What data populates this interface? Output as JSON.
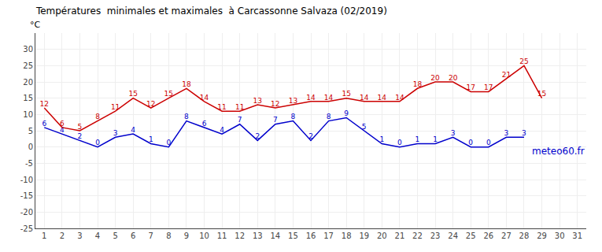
{
  "chart_data": {
    "type": "line",
    "title": "Températures  minimales et maximales  à Carcassonne Salvaza (02/2019)",
    "ylabel": "°C",
    "x": [
      1,
      2,
      3,
      4,
      5,
      6,
      7,
      8,
      9,
      10,
      11,
      12,
      13,
      14,
      15,
      16,
      17,
      18,
      19,
      20,
      21,
      22,
      23,
      24,
      25,
      26,
      27,
      28,
      29,
      30,
      31
    ],
    "series": [
      {
        "color": "#0000cc",
        "values": [
          6,
          4,
          2,
          0,
          3,
          4,
          1,
          0,
          8,
          6,
          4,
          7,
          2,
          7,
          8,
          2,
          8,
          9,
          5,
          1,
          0,
          1,
          1,
          3,
          0,
          0,
          3,
          3,
          null,
          null,
          null
        ]
      },
      {
        "color": "#cc0000",
        "values": [
          12,
          6,
          5,
          8,
          11,
          15,
          12,
          15,
          18,
          14,
          11,
          11,
          13,
          12,
          13,
          14,
          14,
          15,
          14,
          14,
          14,
          18,
          20,
          20,
          17,
          17,
          21,
          25,
          15,
          null,
          null
        ]
      }
    ],
    "annotations": [
      {
        "text": "meteo60.fr",
        "color": "#0000cc"
      }
    ],
    "xlim": [
      0.5,
      31.5
    ],
    "xticks": [
      1,
      2,
      3,
      4,
      5,
      6,
      7,
      8,
      9,
      10,
      11,
      12,
      13,
      14,
      15,
      16,
      17,
      18,
      19,
      20,
      21,
      22,
      23,
      24,
      25,
      26,
      27,
      28,
      29,
      30,
      31
    ],
    "ylim": [
      -25,
      35
    ],
    "yticks": [
      -25,
      -20,
      -15,
      -10,
      -5,
      0,
      5,
      10,
      15,
      20,
      25,
      30
    ],
    "grid": true,
    "data_labels": true
  }
}
